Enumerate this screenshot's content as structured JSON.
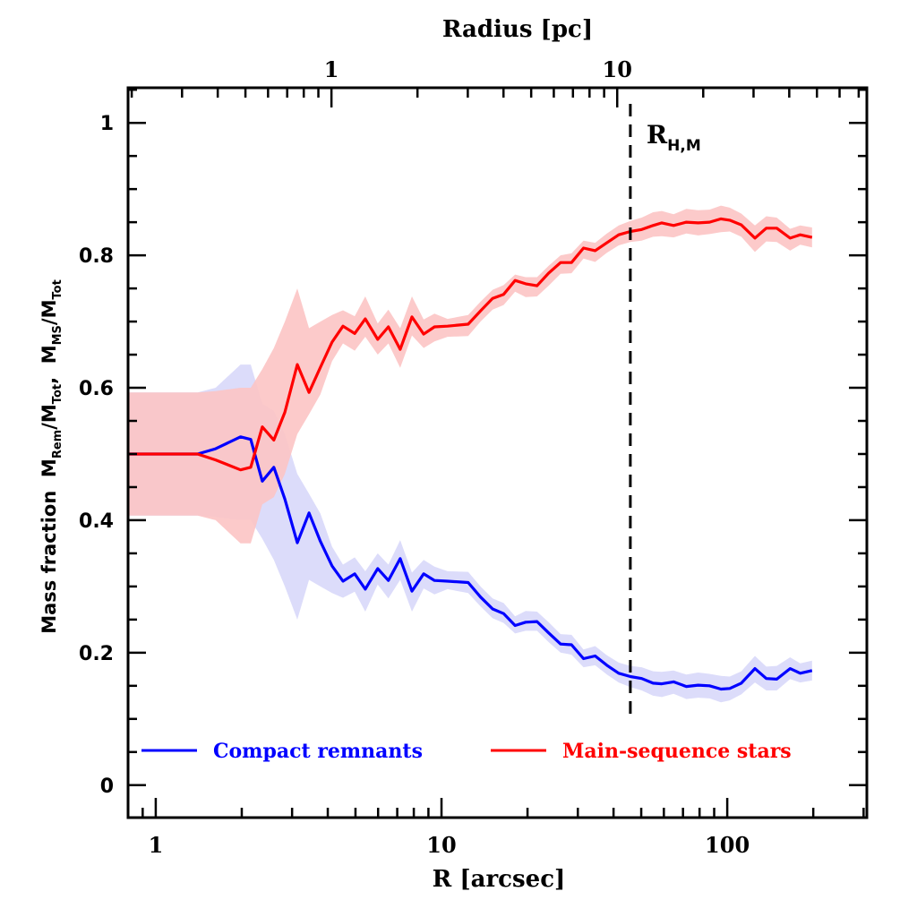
{
  "chart_data": {
    "type": "line",
    "title": "",
    "xlabel": "R [arcsec]",
    "x2label": "Radius [pc]",
    "ylabel": "Mass fraction  M_Rem/M_Tot, M_MS/M_Tot",
    "ylabel_parts": {
      "prefix": "Mass fraction  ",
      "m1": "M",
      "m1_sub": "Rem",
      "slash1": "/M",
      "t1_sub": "Tot",
      "sep": ",  ",
      "m2": "M",
      "m2_sub": "MS",
      "slash2": "/M",
      "t2_sub": "Tot"
    },
    "x_scale": "log",
    "xlim": [
      0.8,
      308
    ],
    "ylim": [
      -0.049,
      1.053
    ],
    "x_ticks": [
      {
        "value": 1,
        "label": "1"
      },
      {
        "value": 10,
        "label": "10"
      },
      {
        "value": 100,
        "label": "100"
      }
    ],
    "x2_ticks": [
      {
        "value": 1,
        "label": "1"
      },
      {
        "value": 10,
        "label": "10"
      }
    ],
    "x2_arcsec_per_pc": 4.12,
    "y_ticks": [
      {
        "value": 0,
        "label": "0"
      },
      {
        "value": 0.2,
        "label": "0.2"
      },
      {
        "value": 0.4,
        "label": "0.4"
      },
      {
        "value": 0.6,
        "label": "0.6"
      },
      {
        "value": 0.8,
        "label": "0.8"
      },
      {
        "value": 1,
        "label": "1"
      }
    ],
    "annotation": {
      "label_main": "R",
      "label_sub": "H,M",
      "x_value": 45.8,
      "style": "dashed"
    },
    "legend": {
      "placement": "bottom"
    },
    "series": [
      {
        "name": "Compact remnants",
        "color": "#0000ff",
        "band_color": "#dcdcfa",
        "x": [
          0.8,
          1.0,
          1.2,
          1.4,
          1.62,
          1.98,
          2.15,
          2.36,
          2.59,
          2.83,
          3.13,
          3.44,
          3.77,
          4.14,
          4.52,
          4.97,
          5.41,
          5.98,
          6.52,
          7.17,
          7.88,
          8.66,
          9.45,
          10.5,
          12.4,
          13.7,
          15.1,
          16.5,
          18.1,
          19.7,
          21.6,
          23.7,
          26.1,
          28.5,
          31.4,
          34.5,
          37.9,
          41.7,
          45.8,
          50.2,
          55.0,
          59.0,
          64.9,
          71.9,
          79.1,
          86.7,
          95.1,
          102,
          112,
          125,
          137,
          149,
          166,
          180,
          198
        ],
        "y": [
          0.5,
          0.5,
          0.5,
          0.5,
          0.508,
          0.526,
          0.522,
          0.459,
          0.48,
          0.432,
          0.366,
          0.411,
          0.368,
          0.331,
          0.308,
          0.319,
          0.296,
          0.327,
          0.309,
          0.342,
          0.293,
          0.319,
          0.309,
          0.308,
          0.306,
          0.284,
          0.266,
          0.259,
          0.241,
          0.246,
          0.247,
          0.23,
          0.213,
          0.212,
          0.191,
          0.195,
          0.181,
          0.169,
          0.164,
          0.161,
          0.154,
          0.153,
          0.156,
          0.149,
          0.151,
          0.15,
          0.145,
          0.146,
          0.154,
          0.176,
          0.161,
          0.16,
          0.176,
          0.169,
          0.173
        ],
        "y_lower": [
          0.407,
          0.407,
          0.407,
          0.407,
          0.405,
          0.4,
          0.4,
          0.372,
          0.34,
          0.3,
          0.25,
          0.31,
          0.3,
          0.29,
          0.283,
          0.292,
          0.262,
          0.303,
          0.282,
          0.31,
          0.262,
          0.297,
          0.288,
          0.296,
          0.29,
          0.27,
          0.252,
          0.245,
          0.229,
          0.233,
          0.233,
          0.216,
          0.2,
          0.197,
          0.178,
          0.181,
          0.167,
          0.155,
          0.148,
          0.143,
          0.135,
          0.133,
          0.138,
          0.13,
          0.132,
          0.131,
          0.125,
          0.128,
          0.137,
          0.155,
          0.143,
          0.143,
          0.16,
          0.155,
          0.158
        ],
        "y_upper": [
          0.593,
          0.593,
          0.593,
          0.593,
          0.6,
          0.635,
          0.635,
          0.576,
          0.565,
          0.53,
          0.47,
          0.44,
          0.41,
          0.36,
          0.333,
          0.344,
          0.323,
          0.35,
          0.333,
          0.37,
          0.321,
          0.34,
          0.33,
          0.323,
          0.322,
          0.3,
          0.282,
          0.275,
          0.255,
          0.263,
          0.262,
          0.246,
          0.228,
          0.227,
          0.205,
          0.21,
          0.196,
          0.185,
          0.18,
          0.178,
          0.172,
          0.171,
          0.173,
          0.167,
          0.17,
          0.168,
          0.165,
          0.164,
          0.172,
          0.195,
          0.179,
          0.18,
          0.193,
          0.184,
          0.188
        ]
      },
      {
        "name": "Main-sequence stars",
        "color": "#ff0000",
        "band_color": "#fcc4c4",
        "x": [
          0.8,
          1.0,
          1.2,
          1.4,
          1.62,
          1.98,
          2.15,
          2.36,
          2.59,
          2.83,
          3.13,
          3.44,
          3.77,
          4.14,
          4.52,
          4.97,
          5.41,
          5.98,
          6.52,
          7.17,
          7.88,
          8.66,
          9.45,
          10.5,
          12.4,
          13.7,
          15.1,
          16.5,
          18.1,
          19.7,
          21.6,
          23.7,
          26.1,
          28.5,
          31.4,
          34.5,
          37.9,
          41.7,
          45.8,
          50.2,
          55.0,
          59.0,
          64.9,
          71.9,
          79.1,
          86.7,
          95.1,
          102,
          112,
          125,
          137,
          149,
          166,
          180,
          198
        ],
        "y": [
          0.5,
          0.5,
          0.5,
          0.5,
          0.491,
          0.476,
          0.48,
          0.541,
          0.521,
          0.563,
          0.635,
          0.593,
          0.631,
          0.669,
          0.693,
          0.682,
          0.704,
          0.673,
          0.692,
          0.658,
          0.707,
          0.681,
          0.692,
          0.693,
          0.696,
          0.716,
          0.735,
          0.741,
          0.762,
          0.757,
          0.754,
          0.773,
          0.789,
          0.789,
          0.811,
          0.807,
          0.819,
          0.831,
          0.836,
          0.839,
          0.845,
          0.849,
          0.845,
          0.85,
          0.849,
          0.85,
          0.855,
          0.853,
          0.846,
          0.826,
          0.841,
          0.841,
          0.826,
          0.831,
          0.827
        ],
        "y_lower": [
          0.407,
          0.407,
          0.407,
          0.407,
          0.4,
          0.365,
          0.365,
          0.424,
          0.435,
          0.47,
          0.53,
          0.56,
          0.59,
          0.64,
          0.667,
          0.656,
          0.677,
          0.65,
          0.667,
          0.63,
          0.679,
          0.66,
          0.67,
          0.677,
          0.678,
          0.7,
          0.718,
          0.725,
          0.745,
          0.737,
          0.738,
          0.754,
          0.772,
          0.773,
          0.795,
          0.79,
          0.804,
          0.815,
          0.82,
          0.822,
          0.828,
          0.829,
          0.827,
          0.833,
          0.83,
          0.832,
          0.835,
          0.836,
          0.828,
          0.805,
          0.821,
          0.82,
          0.807,
          0.816,
          0.812
        ],
        "y_upper": [
          0.593,
          0.593,
          0.593,
          0.593,
          0.595,
          0.6,
          0.6,
          0.628,
          0.66,
          0.7,
          0.75,
          0.69,
          0.7,
          0.71,
          0.717,
          0.708,
          0.738,
          0.697,
          0.718,
          0.69,
          0.738,
          0.703,
          0.712,
          0.704,
          0.71,
          0.73,
          0.748,
          0.755,
          0.771,
          0.767,
          0.767,
          0.784,
          0.8,
          0.803,
          0.822,
          0.819,
          0.833,
          0.845,
          0.852,
          0.857,
          0.865,
          0.867,
          0.862,
          0.87,
          0.868,
          0.869,
          0.875,
          0.872,
          0.863,
          0.845,
          0.859,
          0.857,
          0.84,
          0.845,
          0.842
        ]
      }
    ]
  }
}
